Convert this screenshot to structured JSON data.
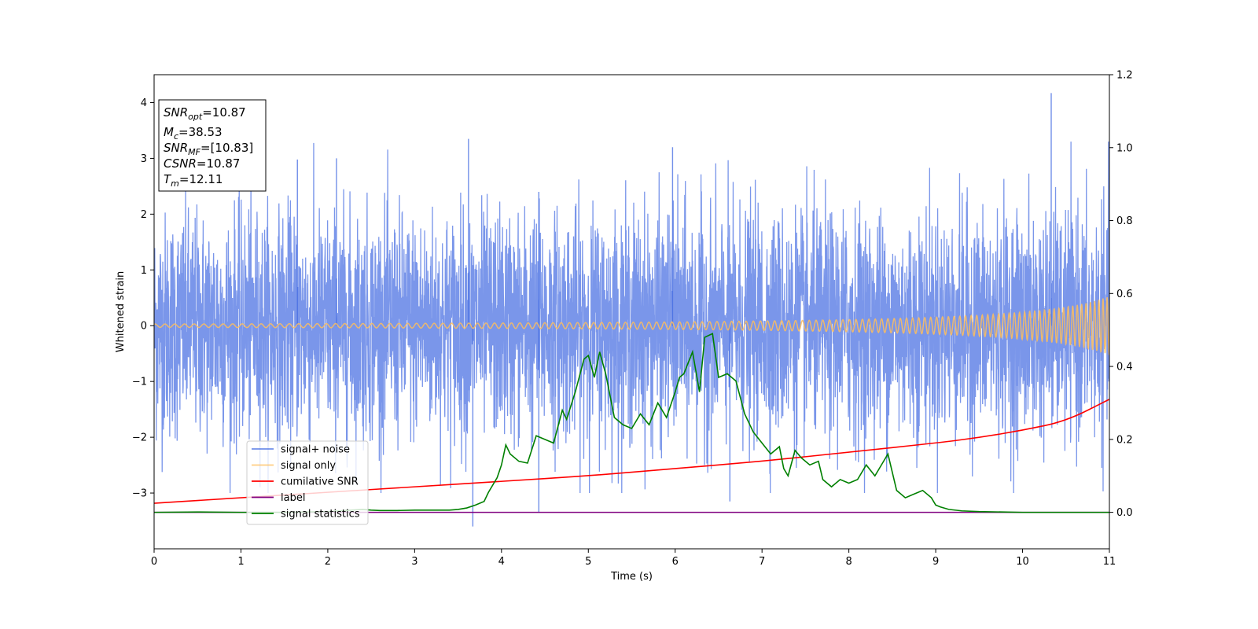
{
  "chart_data": {
    "type": "line",
    "xlabel": "Time (s)",
    "ylabel": "Whitened strain",
    "xlim": [
      0,
      11
    ],
    "ylim": [
      -4,
      4.5
    ],
    "y2lim": [
      -0.1,
      1.2
    ],
    "x_ticks": [
      0,
      1,
      2,
      3,
      4,
      5,
      6,
      7,
      8,
      9,
      10,
      11
    ],
    "y_ticks": [
      -3,
      -2,
      -1,
      0,
      1,
      2,
      3,
      4
    ],
    "y2_ticks": [
      "0.0",
      "0.2",
      "0.4",
      "0.6",
      "0.8",
      "1.0",
      "1.2"
    ],
    "grid": false,
    "legend_position": "lower-left",
    "annotation": {
      "lines": [
        {
          "main": "SNR",
          "sub": "opt",
          "value": "=10.87"
        },
        {
          "main": "M",
          "sub": "c",
          "value": "=38.53"
        },
        {
          "main": "SNR",
          "sub": "MF",
          "value": "=[10.83]"
        },
        {
          "main": "CSNR",
          "sub": "",
          "value": "=10.87"
        },
        {
          "main": "T",
          "sub": "m",
          "value": "=12.11"
        }
      ]
    },
    "series": [
      {
        "name": "signal+ noise",
        "color": "#4169e1",
        "axis": "left",
        "kind": "noise",
        "amplitude": 1.0,
        "x_range": [
          0,
          11
        ],
        "spikes": [
          [
            3.62,
            3.35
          ],
          [
            4.43,
            2.4
          ],
          [
            3.67,
            -3.6
          ],
          [
            4.43,
            -3.35
          ],
          [
            10.33,
            4.17
          ],
          [
            6.63,
            -3.15
          ],
          [
            1.65,
            2.98
          ],
          [
            2.1,
            3.0
          ],
          [
            5.97,
            3.2
          ]
        ]
      },
      {
        "name": "signal only",
        "color": "#ffbe5a",
        "axis": "left",
        "kind": "chirp",
        "x_range": [
          0,
          11
        ]
      },
      {
        "name": "cumilative SNR",
        "color": "#ff0000",
        "axis": "right",
        "x": [
          0,
          1,
          2,
          3,
          4,
          5,
          6,
          7,
          8,
          9,
          9.5,
          10,
          10.5,
          11
        ],
        "y": [
          0.025,
          0.04,
          0.055,
          0.07,
          0.085,
          0.1,
          0.12,
          0.14,
          0.165,
          0.19,
          0.205,
          0.225,
          0.25,
          0.31
        ]
      },
      {
        "name": "label",
        "color": "#800080",
        "axis": "right",
        "x": [
          0,
          11
        ],
        "y": [
          0,
          0
        ]
      },
      {
        "name": "signal statistics",
        "color": "#008000",
        "axis": "right",
        "x": [
          0,
          0.5,
          1,
          1.5,
          2,
          2.2,
          2.4,
          2.5,
          2.6,
          2.8,
          3.0,
          3.2,
          3.4,
          3.5,
          3.6,
          3.7,
          3.8,
          3.85,
          3.95,
          4.0,
          4.05,
          4.1,
          4.2,
          4.3,
          4.4,
          4.5,
          4.6,
          4.7,
          4.75,
          4.85,
          4.95,
          5.0,
          5.07,
          5.13,
          5.2,
          5.3,
          5.4,
          5.5,
          5.6,
          5.7,
          5.8,
          5.9,
          6.0,
          6.05,
          6.1,
          6.2,
          6.28,
          6.34,
          6.43,
          6.5,
          6.6,
          6.7,
          6.8,
          6.9,
          7.0,
          7.1,
          7.2,
          7.25,
          7.3,
          7.38,
          7.45,
          7.55,
          7.65,
          7.7,
          7.8,
          7.9,
          8.0,
          8.1,
          8.2,
          8.3,
          8.45,
          8.55,
          8.65,
          8.75,
          8.85,
          8.95,
          9.0,
          9.05,
          9.15,
          9.3,
          9.5,
          10,
          10.5,
          11
        ],
        "y": [
          0.0,
          0.001,
          0.0,
          0.0,
          0.002,
          0.005,
          0.008,
          0.006,
          0.005,
          0.005,
          0.006,
          0.006,
          0.006,
          0.008,
          0.012,
          0.02,
          0.03,
          0.055,
          0.095,
          0.13,
          0.185,
          0.16,
          0.14,
          0.135,
          0.21,
          0.2,
          0.19,
          0.28,
          0.255,
          0.33,
          0.42,
          0.43,
          0.37,
          0.44,
          0.38,
          0.26,
          0.24,
          0.23,
          0.27,
          0.24,
          0.3,
          0.26,
          0.33,
          0.37,
          0.38,
          0.44,
          0.33,
          0.48,
          0.49,
          0.37,
          0.38,
          0.36,
          0.27,
          0.22,
          0.19,
          0.16,
          0.18,
          0.12,
          0.1,
          0.17,
          0.15,
          0.13,
          0.14,
          0.09,
          0.07,
          0.09,
          0.08,
          0.09,
          0.13,
          0.1,
          0.16,
          0.06,
          0.04,
          0.05,
          0.06,
          0.04,
          0.02,
          0.015,
          0.008,
          0.004,
          0.002,
          0.0,
          0.0,
          0.0
        ]
      }
    ]
  }
}
